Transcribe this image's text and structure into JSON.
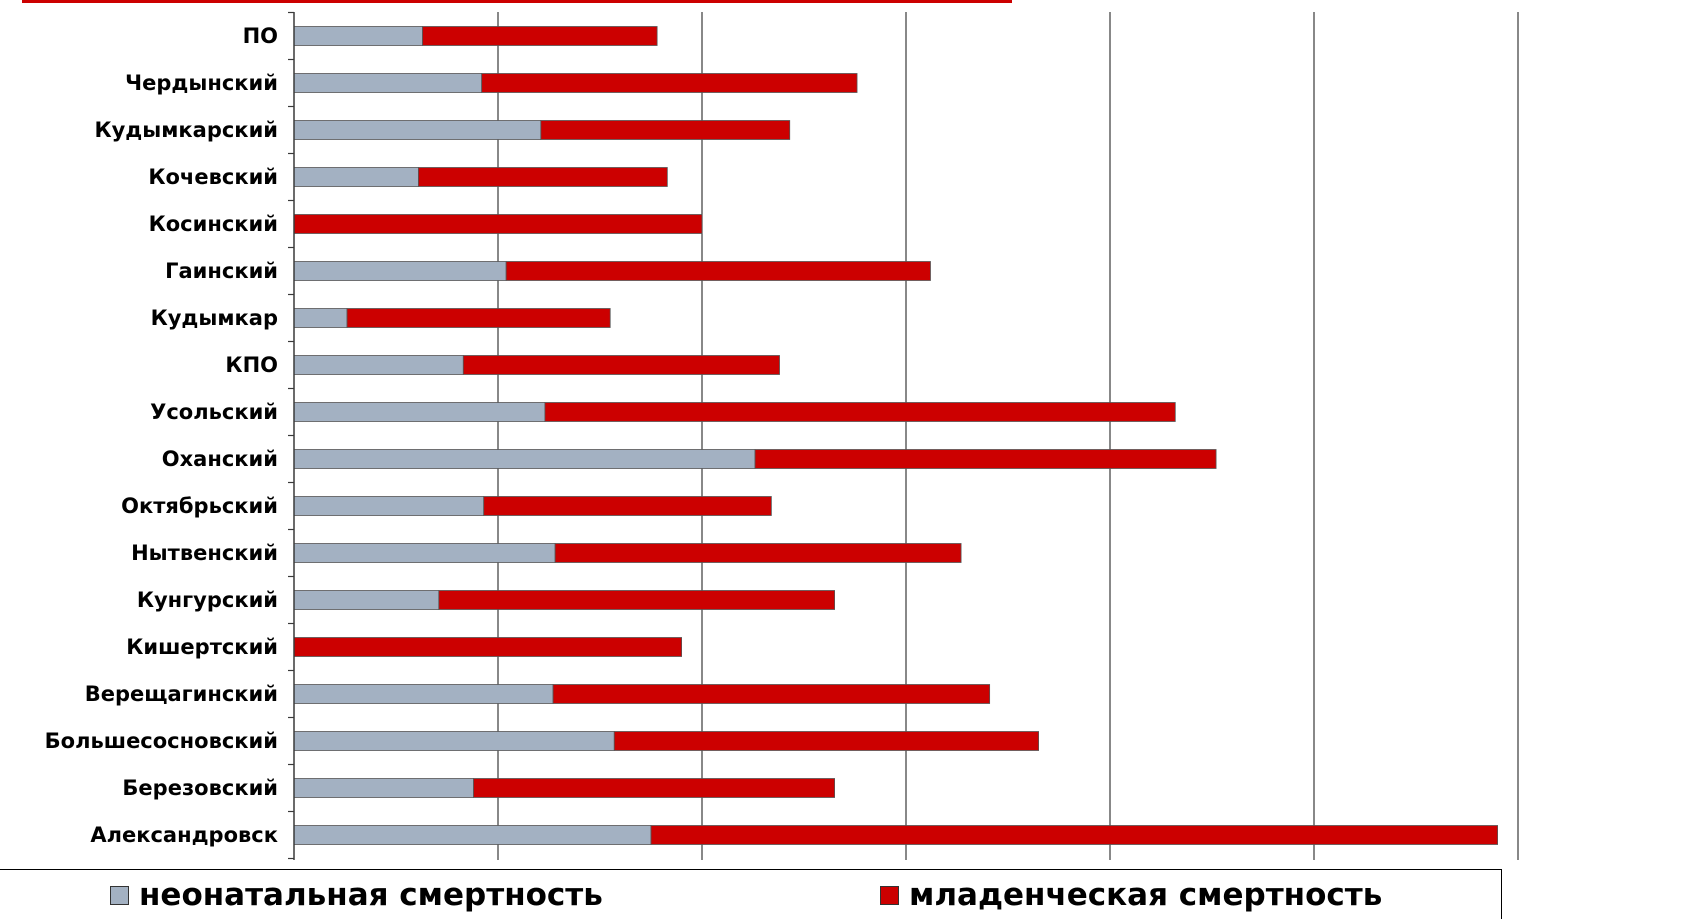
{
  "chart_data": {
    "type": "bar",
    "orientation": "horizontal",
    "stacked": true,
    "categories": [
      "ПО",
      "Чердынский",
      "Кудымкарский",
      "Кочевский",
      "Косинский",
      "Гаинский",
      "Кудымкар",
      "КПО",
      "Усольский",
      "Оханский",
      "Октябрьский",
      "Нытвенский",
      "Кунгурский",
      "Кишертский",
      "Верещагинский",
      "Большесосновский",
      "Березовский",
      "Александровск"
    ],
    "series": [
      {
        "name": "неонатальная смертность",
        "color": "#a3b1c2",
        "values": [
          6.3,
          9.2,
          12.1,
          6.1,
          0,
          10.4,
          2.6,
          8.3,
          12.3,
          22.6,
          9.3,
          12.8,
          7.1,
          0,
          12.7,
          15.7,
          8.8,
          17.5
        ]
      },
      {
        "name": "младенческая смертность",
        "color": "#cc0000",
        "values": [
          11.5,
          18.4,
          12.2,
          12.2,
          20.0,
          20.8,
          12.9,
          15.5,
          30.9,
          22.6,
          14.1,
          19.9,
          19.4,
          19.0,
          21.4,
          20.8,
          17.7,
          41.5
        ]
      }
    ],
    "xlim": [
      0,
      60
    ],
    "grid": true,
    "tick_labels_visible": false,
    "legend_position": "bottom"
  }
}
